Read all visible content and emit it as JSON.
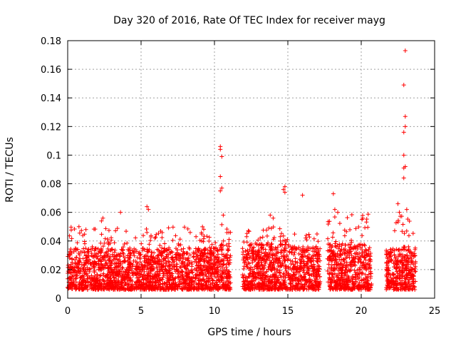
{
  "chart_data": {
    "type": "scatter",
    "title": "Day 320 of 2016, Rate Of TEC Index for receiver mayg",
    "xlabel": "GPS time / hours",
    "ylabel": "ROTI / TECUs",
    "xlim": [
      0,
      25
    ],
    "ylim": [
      0,
      0.18
    ],
    "x_ticks": [
      "0",
      "5",
      "10",
      "15",
      "20",
      "25"
    ],
    "y_ticks": [
      "0",
      "0.02",
      "0.04",
      "0.06",
      "0.08",
      "0.1",
      "0.12",
      "0.14",
      "0.16",
      "0.18"
    ],
    "grid": true,
    "marker": "+",
    "color": "#ff0000",
    "observation_segments": [
      {
        "start": 0.0,
        "end": 10.4,
        "base": 0.017,
        "upper": 0.05
      },
      {
        "start": 10.4,
        "end": 11.1,
        "base": 0.02,
        "upper": 0.058
      },
      {
        "start": 11.9,
        "end": 15.2,
        "base": 0.02,
        "upper": 0.05
      },
      {
        "start": 15.2,
        "end": 17.2,
        "base": 0.018,
        "upper": 0.045
      },
      {
        "start": 17.7,
        "end": 20.7,
        "base": 0.02,
        "upper": 0.06
      },
      {
        "start": 21.7,
        "end": 23.7,
        "base": 0.018,
        "upper": 0.058
      }
    ],
    "highlighted_points": [
      {
        "x": 3.6,
        "y": 0.06
      },
      {
        "x": 5.4,
        "y": 0.064
      },
      {
        "x": 5.5,
        "y": 0.062
      },
      {
        "x": 2.4,
        "y": 0.056
      },
      {
        "x": 2.3,
        "y": 0.054
      },
      {
        "x": 10.4,
        "y": 0.106
      },
      {
        "x": 10.4,
        "y": 0.104
      },
      {
        "x": 10.5,
        "y": 0.099
      },
      {
        "x": 10.4,
        "y": 0.085
      },
      {
        "x": 10.5,
        "y": 0.077
      },
      {
        "x": 10.4,
        "y": 0.075
      },
      {
        "x": 10.6,
        "y": 0.058
      },
      {
        "x": 13.8,
        "y": 0.058
      },
      {
        "x": 14.0,
        "y": 0.056
      },
      {
        "x": 14.8,
        "y": 0.078
      },
      {
        "x": 14.7,
        "y": 0.076
      },
      {
        "x": 14.8,
        "y": 0.074
      },
      {
        "x": 16.0,
        "y": 0.072
      },
      {
        "x": 18.1,
        "y": 0.073
      },
      {
        "x": 18.2,
        "y": 0.062
      },
      {
        "x": 18.4,
        "y": 0.06
      },
      {
        "x": 20.1,
        "y": 0.056
      },
      {
        "x": 23.0,
        "y": 0.173
      },
      {
        "x": 22.9,
        "y": 0.149
      },
      {
        "x": 23.0,
        "y": 0.127
      },
      {
        "x": 23.0,
        "y": 0.12
      },
      {
        "x": 22.9,
        "y": 0.116
      },
      {
        "x": 22.9,
        "y": 0.1
      },
      {
        "x": 23.0,
        "y": 0.092
      },
      {
        "x": 22.9,
        "y": 0.091
      },
      {
        "x": 22.9,
        "y": 0.084
      },
      {
        "x": 22.5,
        "y": 0.066
      },
      {
        "x": 23.1,
        "y": 0.062
      },
      {
        "x": 22.6,
        "y": 0.06
      }
    ]
  }
}
